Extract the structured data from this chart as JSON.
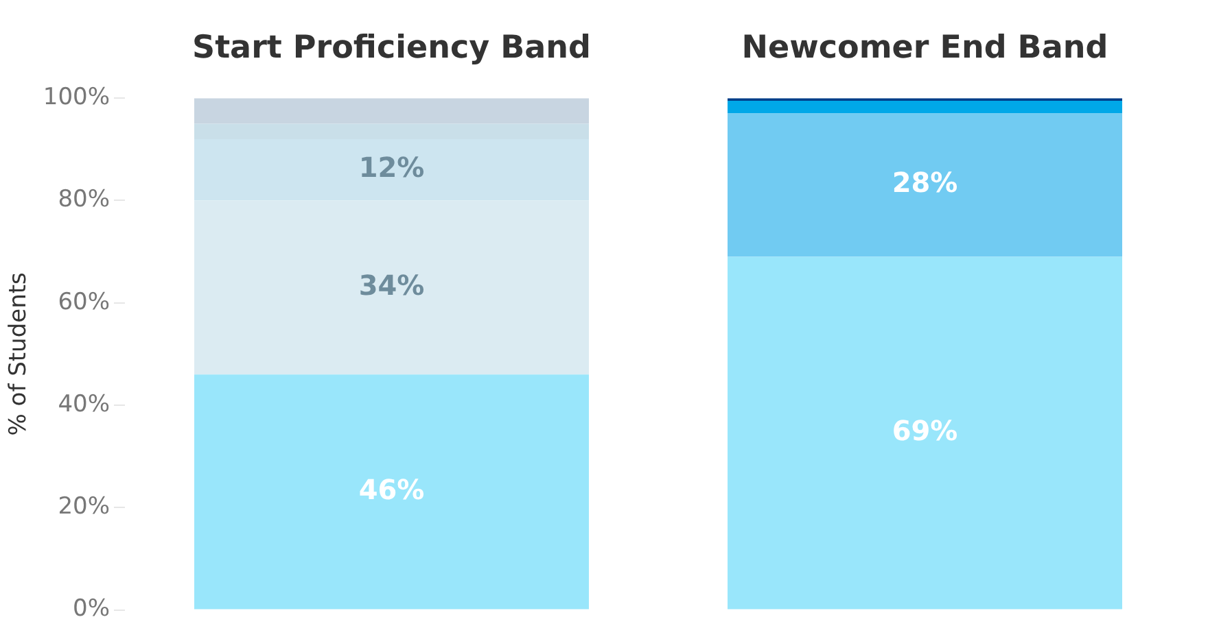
{
  "chart_data": {
    "type": "bar",
    "ylabel": "% of Students",
    "categories": [
      "Start Proficiency Band",
      "Newcomer End Band"
    ],
    "stacked": true,
    "ylim": [
      0,
      100
    ],
    "yticks": [
      {
        "value": 0,
        "label": "0%"
      },
      {
        "value": 20,
        "label": "20%"
      },
      {
        "value": 40,
        "label": "40%"
      },
      {
        "value": 60,
        "label": "60%"
      },
      {
        "value": 80,
        "label": "80%"
      },
      {
        "value": 100,
        "label": "100%"
      }
    ],
    "grid": false,
    "legend": false,
    "series": [
      {
        "colors": [
          "#99e6fb",
          "#99e6fb"
        ],
        "values": [
          46,
          69
        ],
        "value_labels": [
          "46%",
          "69%"
        ]
      },
      {
        "colors": [
          "#dbebf2",
          "#71cbf2"
        ],
        "values": [
          34,
          28
        ],
        "value_labels": [
          "34%",
          "28%"
        ]
      },
      {
        "colors": [
          "#cde5f0",
          "#00a8e8"
        ],
        "values": [
          12,
          2.5
        ],
        "value_labels": [
          "12%",
          null
        ]
      },
      {
        "colors": [
          "#c9dfe9",
          "#003f8a"
        ],
        "values": [
          3,
          0.5
        ],
        "value_labels": [
          null,
          null
        ]
      },
      {
        "colors": [
          "#c8d5e1",
          null
        ],
        "values": [
          5,
          null
        ],
        "value_labels": [
          null,
          null
        ]
      }
    ]
  }
}
